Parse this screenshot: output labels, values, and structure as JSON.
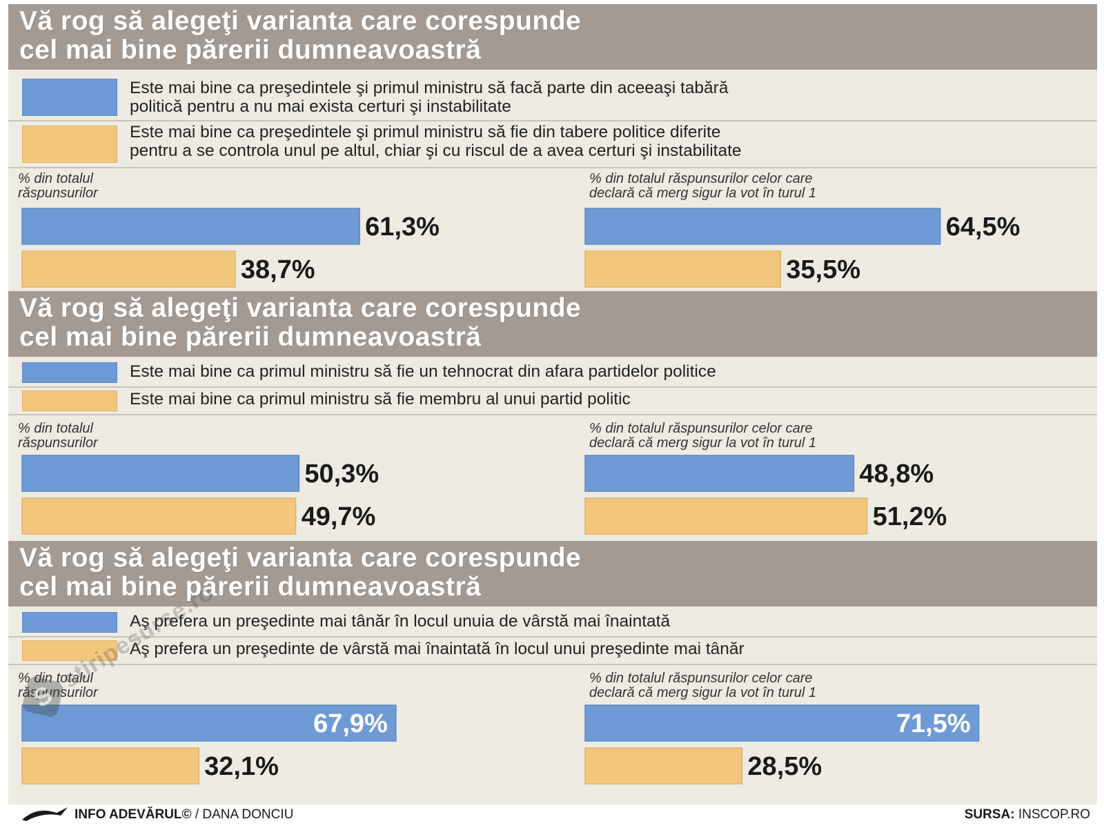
{
  "colors": {
    "blue": "#6e9bd6",
    "orange": "#f2c77d",
    "header_bg": "#a39a94",
    "panel_bg": "#eeebe3"
  },
  "sections": [
    {
      "title": "Vă rog să alegeţi varianta care corespunde\ncel mai bine părerii dumneavoastră",
      "legend": [
        "Este mai bine ca preşedintele şi primul ministru să facă parte din aceeaşi tabără\npolitică pentru a nu mai exista certuri şi instabilitate",
        "Este mai bine ca preşedintele şi primul ministru să fie din tabere politice diferite\npentru a se controla unul pe altul, chiar şi cu riscul de a avea certuri şi instabilitate"
      ],
      "panels": [
        {
          "label": "% din totalul\nrăspunsurilor",
          "values": [
            61.3,
            38.7
          ],
          "labels": [
            "61,3%",
            "38,7%"
          ]
        },
        {
          "label": "% din totalul răspunsurilor celor care\ndeclară că merg sigur la vot în turul 1",
          "values": [
            64.5,
            35.5
          ],
          "labels": [
            "64,5%",
            "35,5%"
          ]
        }
      ]
    },
    {
      "title": "Vă rog să alegeţi varianta care corespunde\ncel mai bine părerii dumneavoastră",
      "legend": [
        "Este mai bine ca primul ministru să fie un tehnocrat din afara partidelor politice",
        "Este mai bine ca primul ministru să fie membru al unui partid politic"
      ],
      "panels": [
        {
          "label": "% din totalul\nrăspunsurilor",
          "values": [
            50.3,
            49.7
          ],
          "labels": [
            "50,3%",
            "49,7%"
          ]
        },
        {
          "label": "% din totalul răspunsurilor celor care\ndeclară că merg sigur la vot în turul 1",
          "values": [
            48.8,
            51.2
          ],
          "labels": [
            "48,8%",
            "51,2%"
          ]
        }
      ]
    },
    {
      "title": "Vă rog să alegeţi varianta care corespunde\ncel mai bine părerii dumneavoastră",
      "legend": [
        "Aş prefera un preşedinte mai tânăr în locul unuia de vârstă mai înaintată",
        "Aş prefera un preşedinte de vârstă mai înaintată în locul unui preşedinte mai tânăr"
      ],
      "panels": [
        {
          "label": "% din totalul\nrăspunsurilor",
          "values": [
            67.9,
            32.1
          ],
          "labels": [
            "67,9%",
            "32,1%"
          ]
        },
        {
          "label": "% din totalul răspunsurilor celor care\ndeclară că merg sigur la vot în turul 1",
          "values": [
            71.5,
            28.5
          ],
          "labels": [
            "71,5%",
            "28,5%"
          ]
        }
      ]
    }
  ],
  "chart_data": [
    {
      "type": "bar",
      "orientation": "horizontal",
      "categories": [
        "Este mai bine ca preşedintele şi primul ministru să facă parte din aceeaşi tabără politică pentru a nu mai exista certuri şi instabilitate",
        "Este mai bine ca preşedintele şi primul ministru să fie din tabere politice diferite pentru a se controla unul pe altul, chiar şi cu riscul de a avea certuri şi instabilitate"
      ],
      "series": [
        {
          "name": "% din totalul răspunsurilor",
          "values": [
            61.3,
            38.7
          ]
        },
        {
          "name": "% din totalul răspunsurilor celor care declară că merg sigur la vot în turul 1",
          "values": [
            64.5,
            35.5
          ]
        }
      ],
      "unit": "%"
    },
    {
      "type": "bar",
      "orientation": "horizontal",
      "categories": [
        "Este mai bine ca primul ministru să fie un tehnocrat din afara partidelor politice",
        "Este mai bine ca primul ministru să fie membru al unui partid politic"
      ],
      "series": [
        {
          "name": "% din totalul răspunsurilor",
          "values": [
            50.3,
            49.7
          ]
        },
        {
          "name": "% din totalul răspunsurilor celor care declară că merg sigur la vot în turul 1",
          "values": [
            48.8,
            51.2
          ]
        }
      ],
      "unit": "%"
    },
    {
      "type": "bar",
      "orientation": "horizontal",
      "categories": [
        "Aş prefera un preşedinte mai tânăr în locul unuia de vârstă mai înaintată",
        "Aş prefera un preşedinte de vârstă mai înaintată în locul unui preşedinte mai tânăr"
      ],
      "series": [
        {
          "name": "% din totalul răspunsurilor",
          "values": [
            67.9,
            32.1
          ]
        },
        {
          "name": "% din totalul răspunsurilor celor care declară că merg sigur la vot în turul 1",
          "values": [
            71.5,
            28.5
          ]
        }
      ],
      "unit": "%"
    }
  ],
  "footer": {
    "credit": "INFO ADEVĂRUL©",
    "author": "/ DANA DONCIU",
    "source_label": "SURSA:",
    "source_value": "INSCOP.RO"
  },
  "watermark": {
    "text": "stiripesurse.ro"
  },
  "icons": {
    "bird": "bird-logo-icon",
    "watermark_logo": "s-logo-icon"
  }
}
